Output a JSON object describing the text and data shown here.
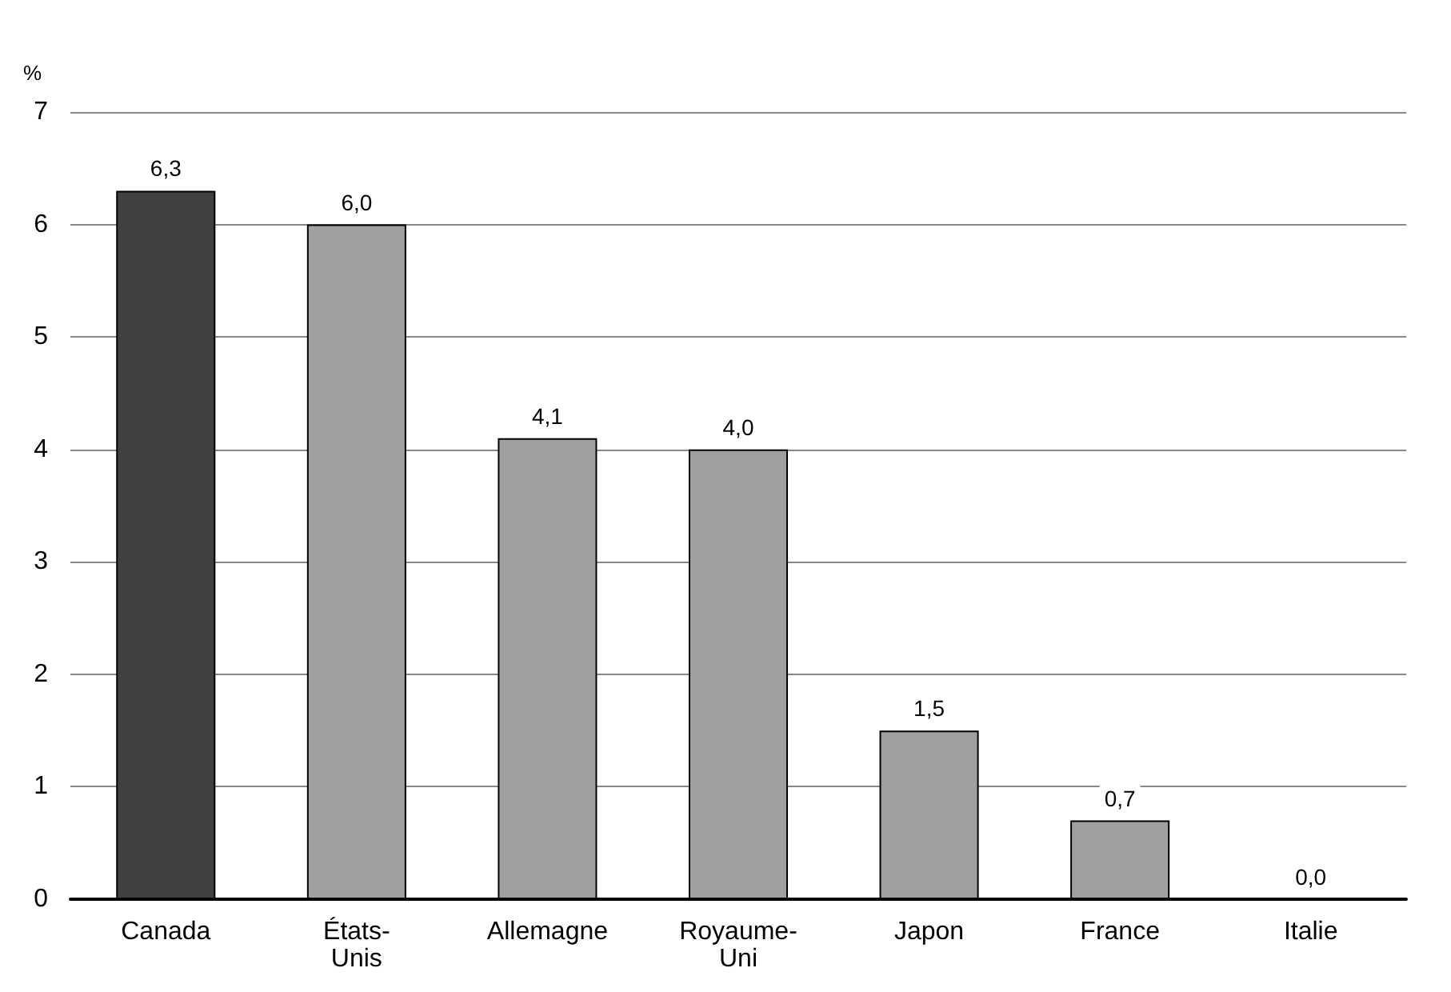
{
  "chart_data": {
    "type": "bar",
    "ylabel": "%",
    "categories": [
      "Canada",
      "États-Unis",
      "Allemagne",
      "Royaume-Uni",
      "Japon",
      "France",
      "Italie"
    ],
    "values": [
      6.3,
      6.0,
      4.1,
      4.0,
      1.5,
      0.7,
      0.0
    ],
    "colors": [
      "#404040",
      "#a0a0a0",
      "#a0a0a0",
      "#a0a0a0",
      "#a0a0a0",
      "#a0a0a0",
      "#a0a0a0"
    ],
    "value_labels": [
      "6,3",
      "6,0",
      "4,1",
      "4,0",
      "1,5",
      "0,7",
      "0,0"
    ],
    "ylim": [
      0,
      7
    ],
    "yticks": [
      0,
      1,
      2,
      3,
      4,
      5,
      6,
      7
    ],
    "grid": "y"
  }
}
